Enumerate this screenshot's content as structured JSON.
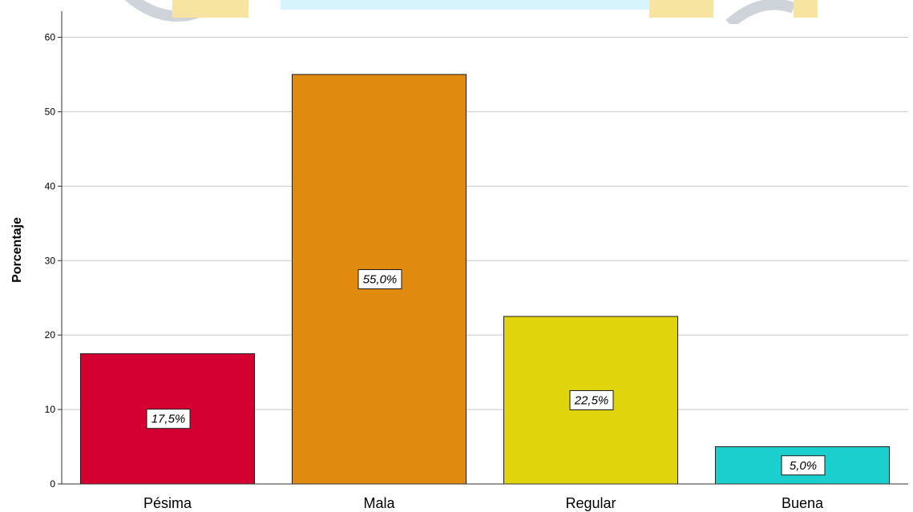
{
  "chart_data": {
    "type": "bar",
    "categories": [
      "Pésima",
      "Mala",
      "Regular",
      "Buena"
    ],
    "values": [
      17.5,
      55.0,
      22.5,
      5.0
    ],
    "data_labels": [
      "17,5%",
      "55,0%",
      "22,5%",
      "5,0%"
    ],
    "colors": [
      "#d50032",
      "#e08a10",
      "#e0d40d",
      "#1ccfcf"
    ],
    "xlabel": "",
    "ylabel": "Porcentaje",
    "ylim": [
      0,
      62
    ],
    "yticks": [
      0,
      10,
      20,
      30,
      40,
      50,
      60
    ],
    "grid": true,
    "legend": "none"
  },
  "watermark": {
    "colors": [
      "#cfd3da",
      "#f6e4a0",
      "#d6f4fb"
    ]
  }
}
